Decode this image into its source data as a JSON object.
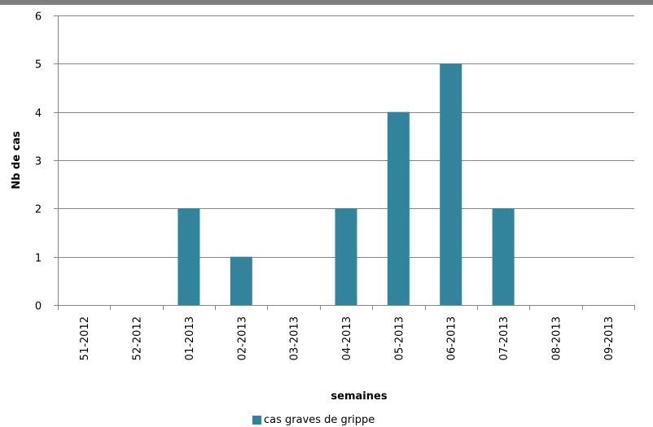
{
  "chart_data": {
    "type": "bar",
    "categories": [
      "51-2012",
      "52-2012",
      "01-2013",
      "02-2013",
      "03-2013",
      "04-2013",
      "05-2013",
      "06-2013",
      "07-2013",
      "08-2013",
      "09-2013"
    ],
    "series": [
      {
        "name": "cas graves de grippe",
        "values": [
          0,
          0,
          2,
          1,
          0,
          2,
          4,
          5,
          2,
          0,
          0
        ]
      }
    ],
    "xlabel": "semaines",
    "ylabel": "Nb de cas",
    "ylim": [
      0,
      6
    ],
    "yticks": [
      0,
      1,
      2,
      3,
      4,
      5,
      6
    ],
    "grid": true,
    "legend": "bottom",
    "colors": {
      "bar": "#31849b",
      "grid": "#868686",
      "axis": "#868686"
    }
  }
}
